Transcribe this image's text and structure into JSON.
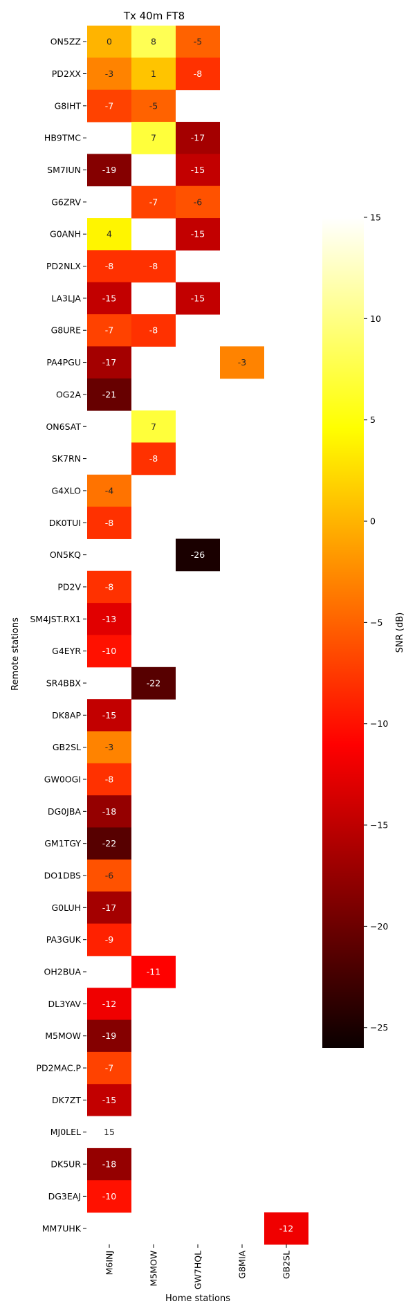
{
  "chart_data": {
    "type": "heatmap",
    "title": "Tx 40m FT8",
    "xlabel": "Home stations",
    "ylabel": "Remote stations",
    "x_categories": [
      "M6INJ",
      "M5MOW",
      "GW7HQL",
      "G8MIA",
      "GB2SL"
    ],
    "y_categories": [
      "ON5ZZ",
      "PD2XX",
      "G8IHT",
      "HB9TMC",
      "SM7IUN",
      "G6ZRV",
      "G0ANH",
      "PD2NLX",
      "LA3LJA",
      "G8URE",
      "PA4PGU",
      "OG2A",
      "ON6SAT",
      "SK7RN",
      "G4XLO",
      "DK0TUI",
      "ON5KQ",
      "PD2V",
      "SM4JST.RX1",
      "G4EYR",
      "SR4BBX",
      "DK8AP",
      "GB2SL",
      "GW0OGI",
      "DG0JBA",
      "GM1TGY",
      "DO1DBS",
      "G0LUH",
      "PA3GUK",
      "OH2BUA",
      "DL3YAV",
      "M5MOW",
      "PD2MAC.P",
      "DK7ZT",
      "MJ0LEL",
      "DK5UR",
      "DG3EAJ",
      "MM7UHK"
    ],
    "values": [
      [
        0,
        8,
        -5,
        null,
        null
      ],
      [
        -3,
        1,
        -8,
        null,
        null
      ],
      [
        -7,
        -5,
        null,
        null,
        null
      ],
      [
        null,
        7,
        -17,
        null,
        null
      ],
      [
        -19,
        null,
        -15,
        null,
        null
      ],
      [
        null,
        -7,
        -6,
        null,
        null
      ],
      [
        4,
        null,
        -15,
        null,
        null
      ],
      [
        -8,
        -8,
        null,
        null,
        null
      ],
      [
        -15,
        null,
        -15,
        null,
        null
      ],
      [
        -7,
        -8,
        null,
        null,
        null
      ],
      [
        -17,
        null,
        null,
        -3,
        null
      ],
      [
        -21,
        null,
        null,
        null,
        null
      ],
      [
        null,
        7,
        null,
        null,
        null
      ],
      [
        null,
        -8,
        null,
        null,
        null
      ],
      [
        -4,
        null,
        null,
        null,
        null
      ],
      [
        -8,
        null,
        null,
        null,
        null
      ],
      [
        null,
        null,
        -26,
        null,
        null
      ],
      [
        -8,
        null,
        null,
        null,
        null
      ],
      [
        -13,
        null,
        null,
        null,
        null
      ],
      [
        -10,
        null,
        null,
        null,
        null
      ],
      [
        null,
        -22,
        null,
        null,
        null
      ],
      [
        -15,
        null,
        null,
        null,
        null
      ],
      [
        -3,
        null,
        null,
        null,
        null
      ],
      [
        -8,
        null,
        null,
        null,
        null
      ],
      [
        -18,
        null,
        null,
        null,
        null
      ],
      [
        -22,
        null,
        null,
        null,
        null
      ],
      [
        -6,
        null,
        null,
        null,
        null
      ],
      [
        -17,
        null,
        null,
        null,
        null
      ],
      [
        -9,
        null,
        null,
        null,
        null
      ],
      [
        null,
        -11,
        null,
        null,
        null
      ],
      [
        -12,
        null,
        null,
        null,
        null
      ],
      [
        -19,
        null,
        null,
        null,
        null
      ],
      [
        -7,
        null,
        null,
        null,
        null
      ],
      [
        -15,
        null,
        null,
        null,
        null
      ],
      [
        15,
        null,
        null,
        null,
        null
      ],
      [
        -18,
        null,
        null,
        null,
        null
      ],
      [
        -10,
        null,
        null,
        null,
        null
      ],
      [
        null,
        null,
        null,
        null,
        -12
      ]
    ],
    "colorbar": {
      "label": "SNR (dB)",
      "vmin": -26,
      "vmax": 15,
      "ticks": [
        15,
        10,
        5,
        0,
        -5,
        -10,
        -15,
        -20,
        -25
      ],
      "tick_labels": [
        "15",
        "10",
        "5",
        "0",
        "−5",
        "−10",
        "−15",
        "−20",
        "−25"
      ],
      "colormap": "hot"
    }
  }
}
